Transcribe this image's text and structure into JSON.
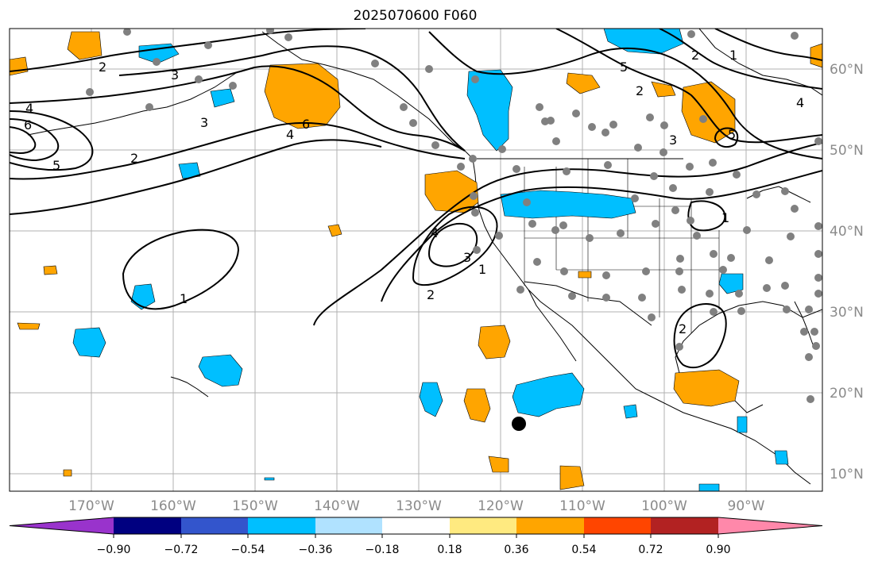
{
  "title": "2025070600 F060",
  "map": {
    "lon_labels": [
      "170°W",
      "160°W",
      "150°W",
      "140°W",
      "130°W",
      "120°W",
      "110°W",
      "100°W",
      "90°W"
    ],
    "lat_labels": [
      "60°N",
      "50°N",
      "40°N",
      "30°N",
      "20°N",
      "10°N"
    ],
    "contour_labels": [
      "2",
      "3",
      "4",
      "6",
      "5",
      "2",
      "3",
      "4",
      "6",
      "4",
      "3",
      "2",
      "1",
      "1",
      "2",
      "5",
      "3",
      "2",
      "1",
      "4",
      "5",
      "1",
      "2"
    ]
  },
  "colorbar": {
    "tick_labels": [
      "−0.90",
      "−0.72",
      "−0.54",
      "−0.36",
      "−0.18",
      "0.18",
      "0.36",
      "0.54",
      "0.72",
      "0.90"
    ],
    "colors": [
      "#9933cc",
      "#000080",
      "#3355cc",
      "#00bfff",
      "#b0e2ff",
      "#ffffff",
      "#ffea80",
      "#ffa500",
      "#ff4500",
      "#b22222",
      "#ff88aa"
    ]
  },
  "colors": {
    "positive_fill": "#ffa500",
    "negative_fill": "#00bfff",
    "station_dot": "#808080",
    "marker": "#000000"
  }
}
